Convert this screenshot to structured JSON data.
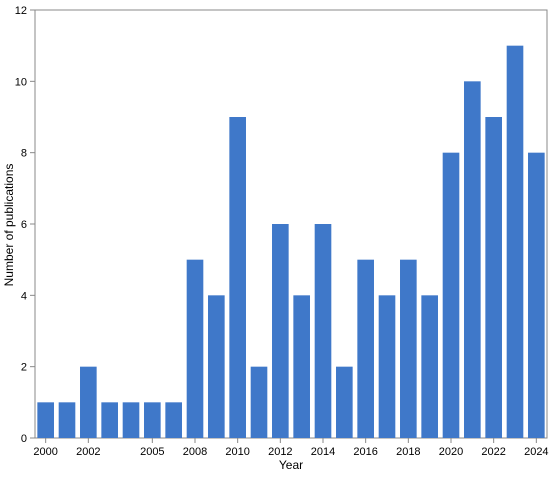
{
  "chart_data": {
    "type": "bar",
    "title": "",
    "xlabel": "Year",
    "ylabel": "Number of publications",
    "ylim": [
      0,
      12
    ],
    "yticks": [
      0,
      2,
      4,
      6,
      8,
      10,
      12
    ],
    "categories": [
      "2000",
      "2001",
      "2002",
      "2003",
      "2004",
      "2005",
      "2006",
      "2008",
      "2009",
      "2010",
      "2011",
      "2012",
      "2013",
      "2014",
      "2015",
      "2016",
      "2017",
      "2018",
      "2019",
      "2020",
      "2021",
      "2022",
      "2023",
      "2024"
    ],
    "values": [
      1,
      1,
      2,
      1,
      1,
      1,
      1,
      5,
      4,
      9,
      2,
      6,
      4,
      6,
      2,
      5,
      4,
      5,
      4,
      8,
      10,
      9,
      11,
      8
    ],
    "xtick_labels": [
      "2000",
      "2002",
      "2005",
      "2008",
      "2010",
      "2012",
      "2014",
      "2016",
      "2018",
      "2020",
      "2022",
      "2024"
    ],
    "bar_color": "#3f78c9",
    "grid": false,
    "legend": "none"
  }
}
